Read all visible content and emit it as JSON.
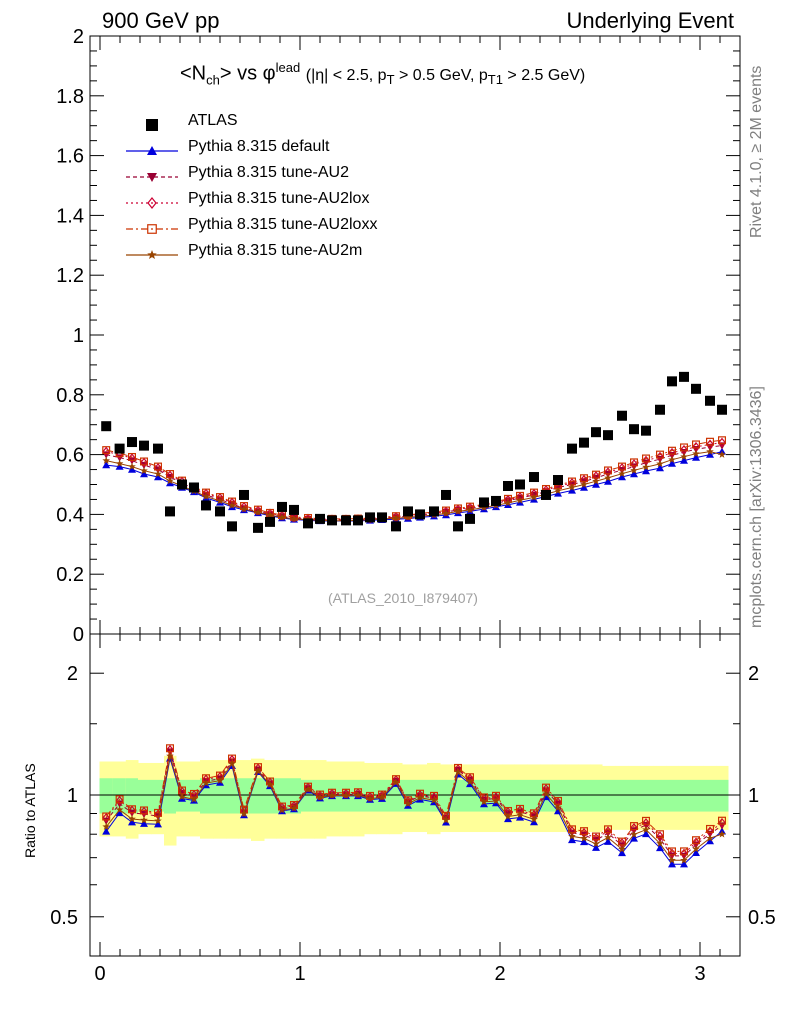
{
  "header": {
    "left": "900 GeV pp",
    "right": "Underlying Event"
  },
  "side_labels": {
    "rivet": "Rivet 4.1.0, ≥ 2M events",
    "mcplots": "mcplots.cern.ch [arXiv:1306.3436]"
  },
  "title": {
    "obs": "<N",
    "obs_sub": "ch",
    "vs": "> vs φ",
    "lead_sup": "lead",
    "cut_eta": "(|η| < 2.5, p",
    "cut_pt_sub": "T",
    "cut_mid": " > 0.5 GeV, p",
    "cut_pt1_sub": "T1",
    "cut_end": " > 2.5 GeV)"
  },
  "legend": [
    {
      "label": "ATLAS",
      "color": "#000000",
      "marker": "square-filled",
      "icon": "black-square-icon"
    },
    {
      "label": "Pythia 8.315 default",
      "color": "#0000dd",
      "marker": "triangle-up",
      "icon": "blue-triangle-icon"
    },
    {
      "label": "Pythia 8.315 tune-AU2",
      "color": "#990033",
      "marker": "triangle-down",
      "icon": "red-triangle-down-icon"
    },
    {
      "label": "Pythia 8.315 tune-AU2lox",
      "color": "#cc0033",
      "marker": "diamond-open",
      "icon": "open-diamond-icon"
    },
    {
      "label": "Pythia 8.315 tune-AU2loxx",
      "color": "#cc3300",
      "marker": "square-open",
      "icon": "open-square-icon"
    },
    {
      "label": "Pythia 8.315 tune-AU2m",
      "color": "#994400",
      "marker": "star",
      "icon": "star-icon"
    }
  ],
  "reference": "(ATLAS_2010_I879407)",
  "ratio_ylabel": "Ratio to ATLAS",
  "chart_data": {
    "type": "scatter",
    "main": {
      "ylim": [
        0,
        2
      ],
      "yticks": [
        "0",
        "0.2",
        "0.4",
        "0.6",
        "0.8",
        "1",
        "1.2",
        "1.4",
        "1.6",
        "1.8",
        "2"
      ],
      "ytick_values": [
        0,
        0.2,
        0.4,
        0.6,
        0.8,
        1,
        1.2,
        1.4,
        1.6,
        1.8,
        2
      ]
    },
    "ratio": {
      "ylim": [
        0.4,
        2.5
      ],
      "yscale": "log",
      "yticks": [
        "0.5",
        "1",
        "2"
      ],
      "ytick_values": [
        0.5,
        1,
        2
      ]
    },
    "xlim": [
      -0.05,
      3.2
    ],
    "xticks": [
      "0",
      "1",
      "2",
      "3"
    ],
    "xtick_values": [
      0,
      1,
      2,
      3
    ],
    "x": [
      0.031,
      0.098,
      0.16,
      0.22,
      0.29,
      0.35,
      0.41,
      0.47,
      0.53,
      0.6,
      0.66,
      0.72,
      0.79,
      0.85,
      0.91,
      0.97,
      1.04,
      1.1,
      1.16,
      1.23,
      1.29,
      1.35,
      1.41,
      1.48,
      1.54,
      1.6,
      1.67,
      1.73,
      1.79,
      1.85,
      1.92,
      1.98,
      2.04,
      2.1,
      2.17,
      2.23,
      2.29,
      2.36,
      2.42,
      2.48,
      2.54,
      2.61,
      2.67,
      2.73,
      2.8,
      2.86,
      2.92,
      2.98,
      3.05,
      3.11
    ],
    "atlas": [
      0.695,
      0.62,
      0.642,
      0.63,
      0.62,
      0.41,
      0.5,
      0.49,
      0.43,
      0.41,
      0.36,
      0.465,
      0.355,
      0.375,
      0.425,
      0.415,
      0.37,
      0.385,
      0.38,
      0.38,
      0.38,
      0.39,
      0.39,
      0.36,
      0.41,
      0.4,
      0.41,
      0.465,
      0.36,
      0.385,
      0.44,
      0.445,
      0.495,
      0.5,
      0.525,
      0.465,
      0.515,
      0.62,
      0.64,
      0.675,
      0.665,
      0.73,
      0.685,
      0.68,
      0.75,
      0.845,
      0.86,
      0.82,
      0.78,
      0.75
    ],
    "series": [
      {
        "name": "Pythia 8.315 default",
        "values": [
          0.565,
          0.56,
          0.55,
          0.535,
          0.525,
          0.505,
          0.49,
          0.475,
          0.455,
          0.44,
          0.425,
          0.415,
          0.405,
          0.395,
          0.388,
          0.383,
          0.38,
          0.378,
          0.378,
          0.378,
          0.378,
          0.38,
          0.382,
          0.384,
          0.386,
          0.39,
          0.394,
          0.398,
          0.405,
          0.41,
          0.418,
          0.425,
          0.432,
          0.44,
          0.45,
          0.46,
          0.47,
          0.48,
          0.49,
          0.5,
          0.51,
          0.525,
          0.535,
          0.545,
          0.555,
          0.57,
          0.58,
          0.59,
          0.6,
          0.61
        ]
      },
      {
        "name": "Pythia 8.315 tune-AU2",
        "values": [
          0.6,
          0.59,
          0.58,
          0.565,
          0.55,
          0.525,
          0.505,
          0.485,
          0.465,
          0.45,
          0.435,
          0.42,
          0.41,
          0.4,
          0.393,
          0.388,
          0.384,
          0.382,
          0.381,
          0.381,
          0.382,
          0.384,
          0.387,
          0.39,
          0.394,
          0.398,
          0.403,
          0.408,
          0.415,
          0.42,
          0.428,
          0.437,
          0.446,
          0.455,
          0.465,
          0.477,
          0.49,
          0.5,
          0.51,
          0.522,
          0.535,
          0.548,
          0.56,
          0.573,
          0.585,
          0.598,
          0.608,
          0.618,
          0.625,
          0.63
        ]
      },
      {
        "name": "Pythia 8.315 tune-AU2lox",
        "values": [
          0.61,
          0.6,
          0.588,
          0.573,
          0.555,
          0.53,
          0.51,
          0.49,
          0.47,
          0.455,
          0.44,
          0.425,
          0.413,
          0.403,
          0.396,
          0.39,
          0.386,
          0.384,
          0.383,
          0.383,
          0.384,
          0.386,
          0.389,
          0.392,
          0.396,
          0.4,
          0.405,
          0.41,
          0.417,
          0.423,
          0.431,
          0.44,
          0.449,
          0.458,
          0.469,
          0.481,
          0.494,
          0.505,
          0.516,
          0.528,
          0.541,
          0.555,
          0.568,
          0.58,
          0.593,
          0.606,
          0.616,
          0.626,
          0.634,
          0.64
        ]
      },
      {
        "name": "Pythia 8.315 tune-AU2loxx",
        "values": [
          0.615,
          0.605,
          0.592,
          0.577,
          0.56,
          0.535,
          0.513,
          0.493,
          0.473,
          0.458,
          0.443,
          0.428,
          0.416,
          0.405,
          0.398,
          0.392,
          0.388,
          0.386,
          0.385,
          0.385,
          0.386,
          0.388,
          0.391,
          0.394,
          0.398,
          0.403,
          0.408,
          0.413,
          0.42,
          0.426,
          0.434,
          0.443,
          0.452,
          0.462,
          0.473,
          0.485,
          0.498,
          0.51,
          0.521,
          0.533,
          0.547,
          0.56,
          0.574,
          0.587,
          0.6,
          0.613,
          0.624,
          0.634,
          0.643,
          0.648
        ]
      },
      {
        "name": "Pythia 8.315 tune-AU2m",
        "values": [
          0.58,
          0.57,
          0.56,
          0.546,
          0.535,
          0.512,
          0.495,
          0.478,
          0.46,
          0.445,
          0.43,
          0.418,
          0.407,
          0.398,
          0.39,
          0.385,
          0.382,
          0.38,
          0.379,
          0.379,
          0.38,
          0.382,
          0.385,
          0.387,
          0.39,
          0.394,
          0.398,
          0.403,
          0.41,
          0.415,
          0.423,
          0.43,
          0.438,
          0.447,
          0.457,
          0.468,
          0.479,
          0.49,
          0.5,
          0.511,
          0.522,
          0.536,
          0.547,
          0.558,
          0.569,
          0.583,
          0.593,
          0.603,
          0.61,
          0.6
        ]
      }
    ],
    "bands": {
      "inner_half_width": [
        0.1,
        0.1,
        0.1,
        0.09,
        0.09,
        0.1,
        0.09,
        0.09,
        0.1,
        0.1,
        0.1,
        0.1,
        0.1,
        0.1,
        0.1,
        0.1,
        0.09,
        0.09,
        0.09,
        0.09,
        0.09,
        0.09,
        0.09,
        0.09,
        0.09,
        0.09,
        0.09,
        0.09,
        0.09,
        0.09,
        0.09,
        0.09,
        0.09,
        0.09,
        0.09,
        0.09,
        0.09,
        0.09,
        0.09,
        0.09,
        0.09,
        0.09,
        0.09,
        0.09,
        0.09,
        0.09,
        0.09,
        0.09,
        0.09,
        0.09
      ],
      "outer_half_width": [
        0.21,
        0.21,
        0.22,
        0.2,
        0.2,
        0.25,
        0.21,
        0.21,
        0.22,
        0.22,
        0.22,
        0.22,
        0.23,
        0.22,
        0.22,
        0.22,
        0.22,
        0.22,
        0.21,
        0.21,
        0.21,
        0.2,
        0.2,
        0.2,
        0.19,
        0.19,
        0.2,
        0.19,
        0.19,
        0.19,
        0.19,
        0.19,
        0.19,
        0.19,
        0.19,
        0.19,
        0.19,
        0.19,
        0.19,
        0.19,
        0.18,
        0.18,
        0.18,
        0.18,
        0.18,
        0.18,
        0.18,
        0.18,
        0.18,
        0.18
      ],
      "inner_color": "#99ff99",
      "outer_color": "#ffff99"
    }
  }
}
